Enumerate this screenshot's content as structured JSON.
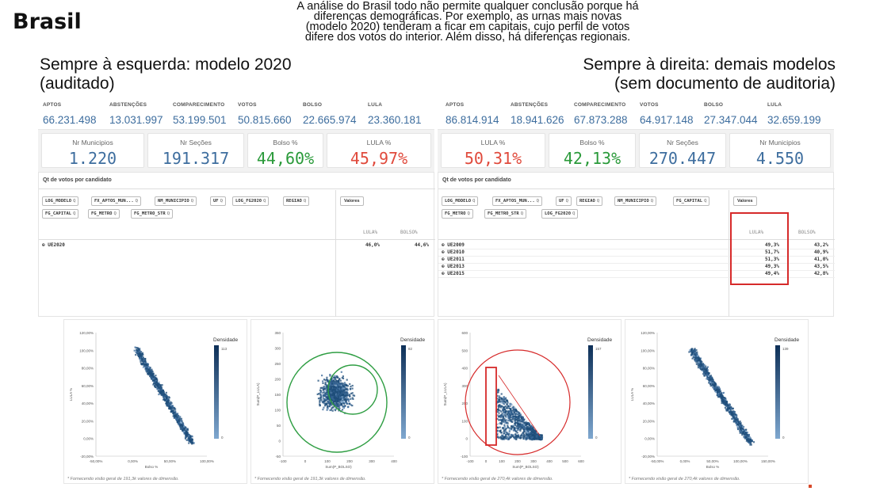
{
  "brand": "Brasil",
  "intro_lines": [
    "A análise do Brasil todo não permite qualquer conclusão porque há",
    "diferenças demográficas. Por exemplo, as urnas mais novas",
    "(modelo 2020) tenderam a ficar em capitais, cujo perfil de votos",
    "difere dos votos do interior. Além disso, há diferenças regionais."
  ],
  "left_heading": [
    "Sempre à esquerda: modelo 2020",
    "(auditado)"
  ],
  "right_heading": [
    "Sempre à direita: demais modelos",
    "(sem documento de auditoria)"
  ],
  "kpi_labels": [
    "APTOS",
    "ABSTENÇÕES",
    "COMPARECIMENTO",
    "VOTOS",
    "BOLSO",
    "LULA"
  ],
  "left_panel": {
    "kpis": [
      "66.231.498",
      "13.031.997",
      "53.199.501",
      "50.815.660",
      "22.665.974",
      "23.360.181"
    ],
    "cards": [
      {
        "title": "Nr Municipios",
        "value": "1.220"
      },
      {
        "title": "Nr Seções",
        "value": "191.317"
      },
      {
        "title": "Bolso %",
        "value": "44,60%"
      },
      {
        "title": "LULA %",
        "value": "45,97%"
      }
    ],
    "table_title": "Qt de votos por candidato",
    "chips_row1": [
      "LOG_MODELO",
      "FX_APTOS_MUN...",
      "NM_MUNICIPIO",
      "UF",
      "LOG_FG2020",
      "REGIAO"
    ],
    "chips_row2": [
      "FG_CAPITAL",
      "FG_METRO",
      "FG_METRO_STR"
    ],
    "values_button": "Valores",
    "columns": [
      "LULA%",
      "BOLSO%"
    ],
    "rows": [
      {
        "label": "UE2020",
        "lula": "46,0%",
        "bolso": "44,6%"
      }
    ]
  },
  "right_panel": {
    "kpis": [
      "86.814.914",
      "18.941.626",
      "67.873.288",
      "64.917.148",
      "27.347.044",
      "32.659.199"
    ],
    "cards": [
      {
        "title": "LULA %",
        "value": "50,31%"
      },
      {
        "title": "Bolso %",
        "value": "42,13%"
      },
      {
        "title": "Nr Seções",
        "value": "270.447"
      },
      {
        "title": "Nr Municipios",
        "value": "4.550"
      }
    ],
    "table_title": "Qt de votos por candidato",
    "chips_row1": [
      "LOG_MODELO",
      "FX_APTOS_MUN...",
      "UF",
      "REGIAO",
      "NM_MUNICIPIO",
      "FG_CAPITAL"
    ],
    "chips_row2": [
      "FG_METRO",
      "FG_METRO_STR",
      "LOG_FG2020"
    ],
    "values_button": "Valores",
    "columns": [
      "LULA%",
      "BOLSO%"
    ],
    "rows": [
      {
        "label": "UE2009",
        "lula": "49,3%",
        "bolso": "43,2%"
      },
      {
        "label": "UE2010",
        "lula": "51,7%",
        "bolso": "40,9%"
      },
      {
        "label": "UE2011",
        "lula": "51,3%",
        "bolso": "41,0%"
      },
      {
        "label": "UE2013",
        "lula": "49,3%",
        "bolso": "43,5%"
      },
      {
        "label": "UE2015",
        "lula": "49,4%",
        "bolso": "42,8%"
      }
    ]
  },
  "colors": {
    "accent": "#3d6d9e",
    "green": "#2a9a3a",
    "red": "#e04a3c",
    "highlight": "#d62a2a",
    "density": "#1f4e7a"
  },
  "chart_data": [
    {
      "type": "heatmap",
      "legend_title": "Densidade",
      "legend_max": "113",
      "legend_min": "0",
      "xlabel": "Bolso %",
      "ylabel": "LULA %",
      "x_ticks": [
        "-50,00%",
        "0,00%",
        "50,00%",
        "100,00%"
      ],
      "y_ticks": [
        "120,00%",
        "100,00%",
        "80,00%",
        "60,00%",
        "40,00%",
        "20,00%",
        "0,00%",
        "-20,00%"
      ],
      "footer": "* Fornecendo visão geral de 191,3k valores de dimensão."
    },
    {
      "type": "heatmap",
      "legend_title": "Densidade",
      "legend_max": "82",
      "legend_min": "0",
      "xlabel": "Sum(P_BOLSO)",
      "ylabel": "Sum(P_LULA)",
      "x_ticks": [
        "-100",
        "0",
        "100",
        "200",
        "300",
        "400"
      ],
      "y_ticks": [
        "350",
        "300",
        "250",
        "200",
        "150",
        "100",
        "50",
        "0",
        "-50"
      ],
      "footer": "* Fornecendo visão geral de 191,3k valores de dimensão."
    },
    {
      "type": "heatmap",
      "legend_title": "Densidade",
      "legend_max": "157",
      "legend_min": "0",
      "xlabel": "Sum(P_BOLSO)",
      "ylabel": "Sum(P_LULA)",
      "x_ticks": [
        "-100",
        "0",
        "100",
        "200",
        "300",
        "400",
        "500",
        "600"
      ],
      "y_ticks": [
        "600",
        "500",
        "400",
        "300",
        "200",
        "100",
        "0",
        "-100"
      ],
      "footer": "* Fornecendo visão geral de 270,4k valores de dimensão."
    },
    {
      "type": "heatmap",
      "legend_title": "Densidade",
      "legend_max": "139",
      "legend_min": "0",
      "xlabel": "Bolso %",
      "ylabel": "LULA %",
      "x_ticks": [
        "-50,00%",
        "0,00%",
        "50,00%",
        "100,00%",
        "150,00%"
      ],
      "y_ticks": [
        "120,00%",
        "100,00%",
        "80,00%",
        "60,00%",
        "40,00%",
        "20,00%",
        "0,00%",
        "-20,00%"
      ],
      "footer": "* Fornecendo visão geral de 270,4k valores de dimensão."
    }
  ]
}
